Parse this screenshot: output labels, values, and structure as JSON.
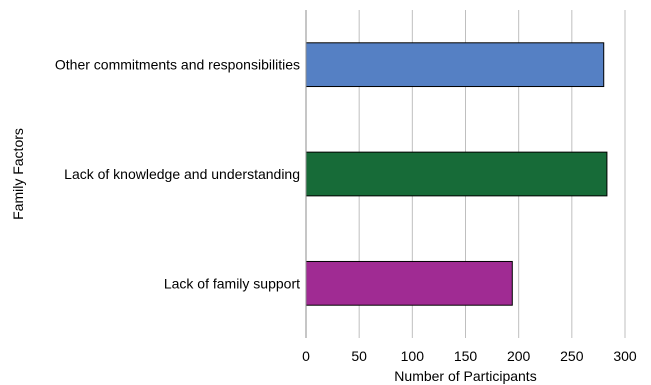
{
  "chart_data": {
    "type": "bar",
    "orientation": "horizontal",
    "categories": [
      "Other commitments and responsibilities",
      "Lack of knowledge and understanding",
      "Lack of family support"
    ],
    "values": [
      280,
      283,
      194
    ],
    "colors": [
      "#5580c4",
      "#176b38",
      "#a02b93"
    ],
    "title": "",
    "xlabel": "Number of Participants",
    "ylabel": "Family Factors",
    "xlim": [
      0,
      300
    ],
    "xticks": [
      0,
      50,
      100,
      150,
      200,
      250,
      300
    ],
    "grid": "vertical",
    "legend": "none"
  }
}
